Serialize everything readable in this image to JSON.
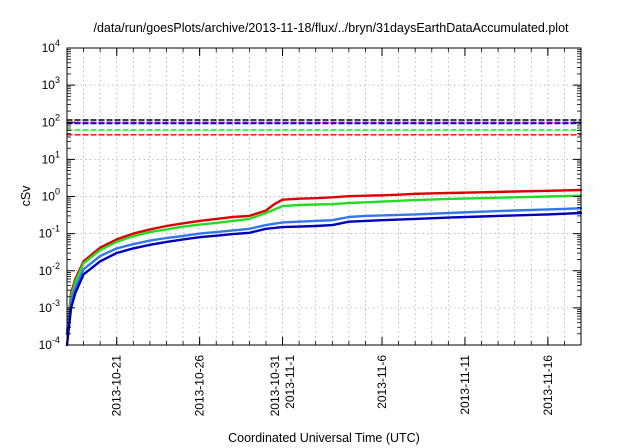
{
  "chart_data": {
    "type": "line",
    "title": "/data/run/goesPlots/archive/2013-11-18/flux/../bryn/31daysEarthDataAccumulated.plot",
    "xlabel": "Coordinated Universal Time (UTC)",
    "ylabel": "cSv",
    "yscale": "log",
    "ylim": [
      0.0001,
      10000
    ],
    "ytick_labels": [
      {
        "base": "10",
        "exp": "-4"
      },
      {
        "base": "10",
        "exp": "-3"
      },
      {
        "base": "10",
        "exp": "-2"
      },
      {
        "base": "10",
        "exp": "-1"
      },
      {
        "base": "10",
        "exp": "0"
      },
      {
        "base": "10",
        "exp": "1"
      },
      {
        "base": "10",
        "exp": "2"
      },
      {
        "base": "10",
        "exp": "3"
      },
      {
        "base": "10",
        "exp": "4"
      }
    ],
    "xlim": [
      "2013-10-18",
      "2013-11-18"
    ],
    "xtick_labels": [
      {
        "date": "2013-10-21",
        "lines": [
          "2013-10-21"
        ]
      },
      {
        "date": "2013-10-26",
        "lines": [
          "2013-10-26"
        ]
      },
      {
        "date": "2013-10-31",
        "lines": [
          "2013-10-31",
          "2013-11-1"
        ]
      },
      {
        "date": "2013-11-06",
        "lines": [
          "2013-11-6"
        ]
      },
      {
        "date": "2013-11-11",
        "lines": [
          "2013-11-11"
        ]
      },
      {
        "date": "2013-11-16",
        "lines": [
          "2013-11-16"
        ]
      }
    ],
    "grid": true,
    "series": [
      {
        "color": "#dd0000",
        "dashed": false,
        "x": [
          "2013-10-18",
          "2013-10-18T06:00",
          "2013-10-18T12:00",
          "2013-10-19",
          "2013-10-20",
          "2013-10-21",
          "2013-10-22",
          "2013-10-23",
          "2013-10-24",
          "2013-10-25",
          "2013-10-26",
          "2013-10-27",
          "2013-10-28",
          "2013-10-29",
          "2013-10-30",
          "2013-10-30T12:00",
          "2013-10-31",
          "2013-11-01",
          "2013-11-02",
          "2013-11-03",
          "2013-11-04",
          "2013-11-05",
          "2013-11-06",
          "2013-11-07",
          "2013-11-08",
          "2013-11-10",
          "2013-11-12",
          "2013-11-14",
          "2013-11-16",
          "2013-11-18"
        ],
        "y": [
          0.0002,
          0.0025,
          0.006,
          0.018,
          0.042,
          0.07,
          0.1,
          0.13,
          0.16,
          0.19,
          0.22,
          0.25,
          0.28,
          0.3,
          0.42,
          0.62,
          0.82,
          0.87,
          0.9,
          0.95,
          1.02,
          1.05,
          1.08,
          1.12,
          1.18,
          1.24,
          1.3,
          1.36,
          1.42,
          1.5
        ]
      },
      {
        "color": "#22dd22",
        "dashed": false,
        "x": [
          "2013-10-18",
          "2013-10-18T06:00",
          "2013-10-18T12:00",
          "2013-10-19",
          "2013-10-20",
          "2013-10-21",
          "2013-10-22",
          "2013-10-23",
          "2013-10-24",
          "2013-10-25",
          "2013-10-26",
          "2013-10-27",
          "2013-10-28",
          "2013-10-29",
          "2013-10-30",
          "2013-10-31",
          "2013-11-01",
          "2013-11-02",
          "2013-11-03",
          "2013-11-04",
          "2013-11-05",
          "2013-11-06",
          "2013-11-08",
          "2013-11-10",
          "2013-11-12",
          "2013-11-14",
          "2013-11-16",
          "2013-11-18"
        ],
        "y": [
          0.0002,
          0.002,
          0.005,
          0.016,
          0.036,
          0.06,
          0.085,
          0.11,
          0.13,
          0.155,
          0.175,
          0.195,
          0.22,
          0.25,
          0.36,
          0.55,
          0.59,
          0.61,
          0.62,
          0.67,
          0.7,
          0.73,
          0.8,
          0.86,
          0.9,
          0.95,
          1.0,
          1.05
        ]
      },
      {
        "color": "#3377ee",
        "dashed": false,
        "x": [
          "2013-10-18",
          "2013-10-18T06:00",
          "2013-10-18T12:00",
          "2013-10-19",
          "2013-10-20",
          "2013-10-21",
          "2013-10-22",
          "2013-10-23",
          "2013-10-24",
          "2013-10-25",
          "2013-10-26",
          "2013-10-27",
          "2013-10-28",
          "2013-10-29",
          "2013-10-30",
          "2013-10-31",
          "2013-11-01",
          "2013-11-02",
          "2013-11-03",
          "2013-11-04",
          "2013-11-05",
          "2013-11-06",
          "2013-11-08",
          "2013-11-10",
          "2013-11-12",
          "2013-11-14",
          "2013-11-16",
          "2013-11-18"
        ],
        "y": [
          0.0002,
          0.0015,
          0.0035,
          0.011,
          0.025,
          0.04,
          0.052,
          0.065,
          0.076,
          0.087,
          0.1,
          0.11,
          0.122,
          0.135,
          0.17,
          0.2,
          0.21,
          0.22,
          0.23,
          0.28,
          0.3,
          0.31,
          0.33,
          0.36,
          0.39,
          0.42,
          0.45,
          0.48
        ]
      },
      {
        "color": "#0000bb",
        "dashed": false,
        "x": [
          "2013-10-18",
          "2013-10-18T06:00",
          "2013-10-18T12:00",
          "2013-10-19",
          "2013-10-20",
          "2013-10-21",
          "2013-10-22",
          "2013-10-23",
          "2013-10-24",
          "2013-10-25",
          "2013-10-26",
          "2013-10-27",
          "2013-10-28",
          "2013-10-29",
          "2013-10-30",
          "2013-10-31",
          "2013-11-01",
          "2013-11-02",
          "2013-11-03",
          "2013-11-04",
          "2013-11-05",
          "2013-11-06",
          "2013-11-08",
          "2013-11-10",
          "2013-11-12",
          "2013-11-14",
          "2013-11-16",
          "2013-11-18"
        ],
        "y": [
          0.0001,
          0.001,
          0.0025,
          0.008,
          0.018,
          0.03,
          0.04,
          0.05,
          0.06,
          0.07,
          0.08,
          0.088,
          0.097,
          0.105,
          0.135,
          0.15,
          0.155,
          0.16,
          0.17,
          0.21,
          0.22,
          0.23,
          0.25,
          0.27,
          0.29,
          0.31,
          0.33,
          0.36
        ]
      },
      {
        "color": "#000000",
        "dashed": true,
        "x": [
          "2013-10-18",
          "2013-11-18"
        ],
        "y": [
          115,
          115
        ]
      },
      {
        "color": "#9900cc",
        "dashed": true,
        "x": [
          "2013-10-18",
          "2013-11-18"
        ],
        "y": [
          100,
          100
        ]
      },
      {
        "color": "#0000dd",
        "dashed": true,
        "x": [
          "2013-10-18",
          "2013-11-18"
        ],
        "y": [
          92,
          92
        ]
      },
      {
        "color": "#22dd22",
        "dashed": true,
        "x": [
          "2013-10-18",
          "2013-11-18"
        ],
        "y": [
          62,
          62
        ]
      },
      {
        "color": "#dd0000",
        "dashed": true,
        "x": [
          "2013-10-18",
          "2013-11-18"
        ],
        "y": [
          46,
          46
        ]
      }
    ]
  }
}
